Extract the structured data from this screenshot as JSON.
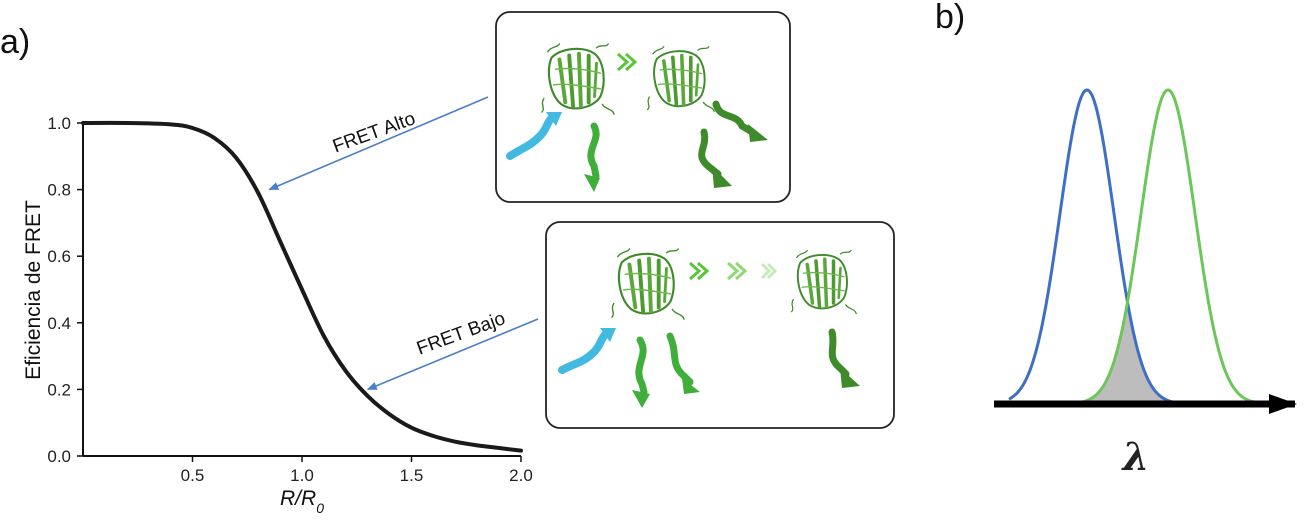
{
  "panels": {
    "a": "a)",
    "b": "b)"
  },
  "chart_data": [
    {
      "type": "line",
      "title": "",
      "xlabel": "R/R",
      "xlabel_sub": "0",
      "ylabel": "Eficiencia de FRET",
      "xlim": [
        0,
        2.0
      ],
      "ylim": [
        0,
        1.0
      ],
      "x_ticks": [
        "0.5",
        "1.0",
        "1.5",
        "2.0"
      ],
      "x_tick_values": [
        0.5,
        1.0,
        1.5,
        2.0
      ],
      "y_ticks": [
        "0.0",
        "0.2",
        "0.4",
        "0.6",
        "0.8",
        "1.0"
      ],
      "y_tick_values": [
        0.0,
        0.2,
        0.4,
        0.6,
        0.8,
        1.0
      ],
      "series": [
        {
          "color": "#1a1a1a",
          "x": [
            0.0,
            0.2,
            0.4,
            0.5,
            0.6,
            0.7,
            0.8,
            0.9,
            1.0,
            1.1,
            1.2,
            1.3,
            1.4,
            1.5,
            1.6,
            1.7,
            1.8,
            1.9,
            2.0
          ],
          "y": [
            1.0,
            1.0,
            0.996,
            0.985,
            0.955,
            0.895,
            0.79,
            0.645,
            0.5,
            0.36,
            0.255,
            0.18,
            0.125,
            0.085,
            0.06,
            0.043,
            0.032,
            0.024,
            0.016
          ]
        }
      ],
      "annotations": [
        {
          "text": "FRET Alto",
          "points_to": {
            "x": 0.85,
            "y": 0.8
          }
        },
        {
          "text": "FRET Bajo",
          "points_to": {
            "x": 1.3,
            "y": 0.2
          }
        }
      ],
      "arrow_color": "#4a7fc8"
    },
    {
      "type": "line",
      "title": "",
      "xlabel": "λ",
      "series": [
        {
          "color": "#3f6fc4",
          "center": 0.31,
          "width": 0.09
        },
        {
          "color": "#6cc65a",
          "center": 0.58,
          "width": 0.09
        }
      ],
      "overlap_fill": "#bdbdbd"
    }
  ]
}
